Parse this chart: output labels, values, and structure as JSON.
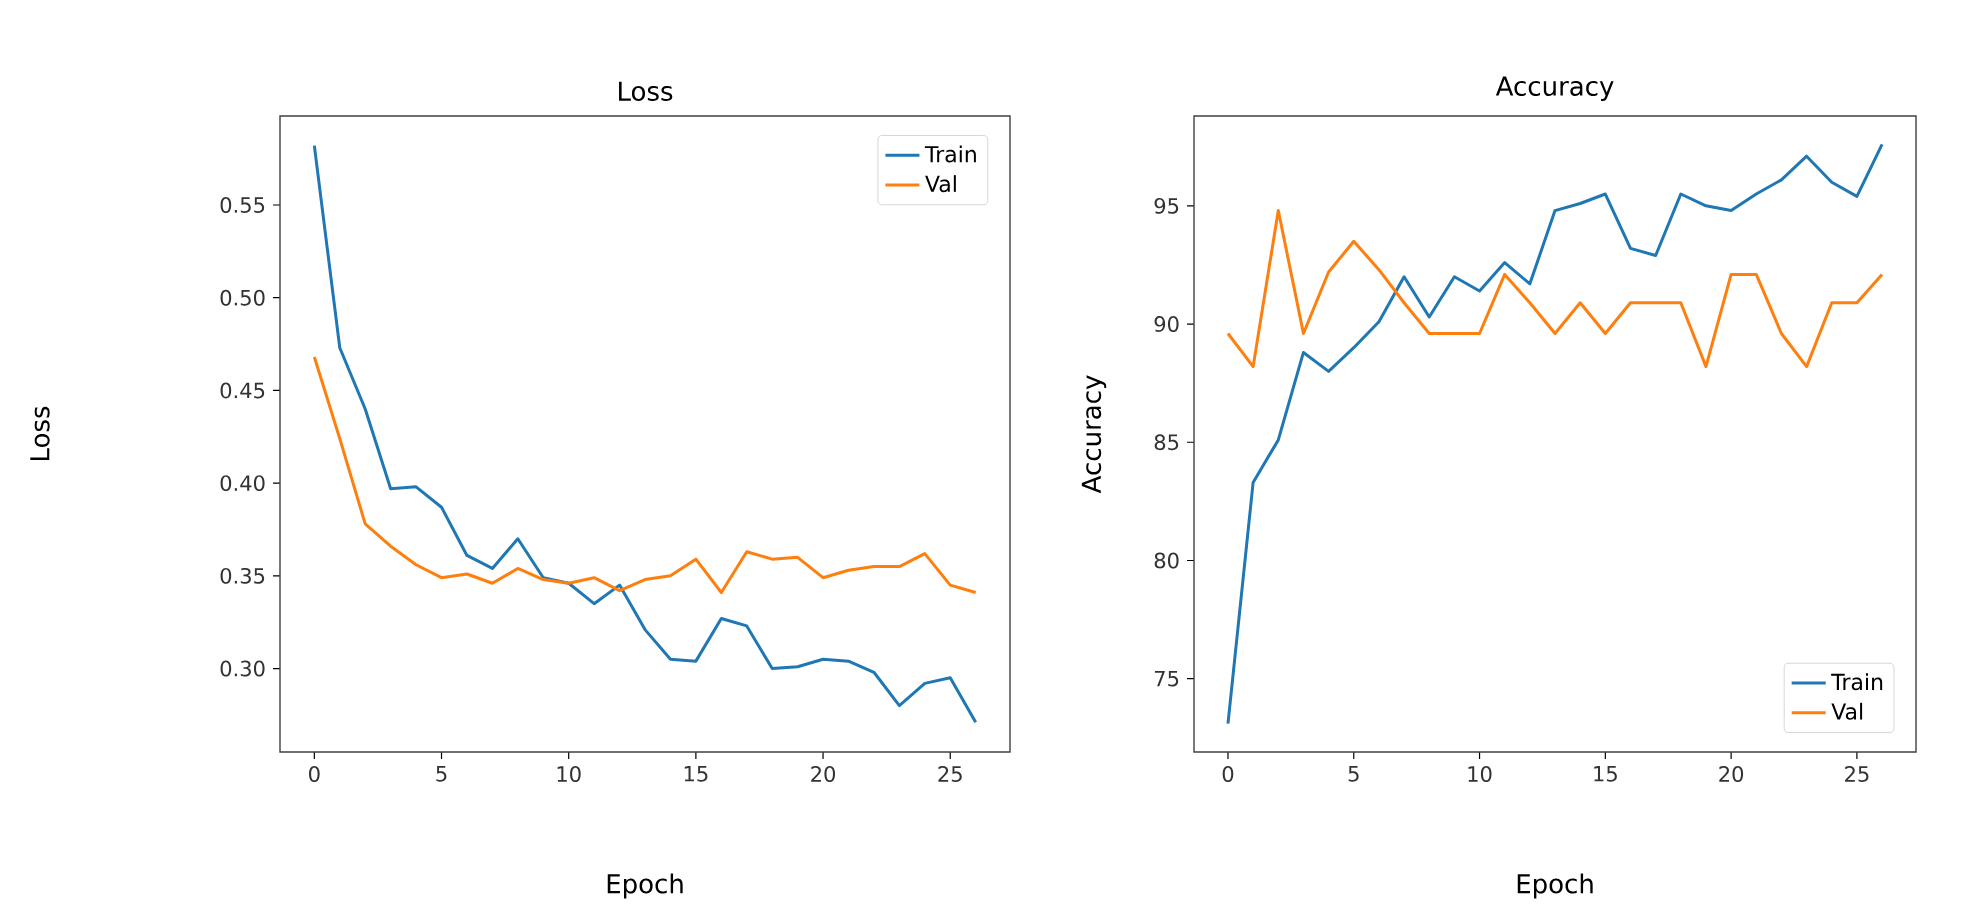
{
  "chart_data": [
    {
      "type": "line",
      "title": "Loss",
      "xlabel": "Epoch",
      "ylabel": "Loss",
      "x": [
        0,
        1,
        2,
        3,
        4,
        5,
        6,
        7,
        8,
        9,
        10,
        11,
        12,
        13,
        14,
        15,
        16,
        17,
        18,
        19,
        20,
        21,
        22,
        23,
        24,
        25,
        26
      ],
      "series": [
        {
          "name": "Train",
          "color": "#1f77b4",
          "values": [
            0.582,
            0.473,
            0.44,
            0.397,
            0.398,
            0.387,
            0.361,
            0.354,
            0.37,
            0.349,
            0.346,
            0.335,
            0.345,
            0.321,
            0.305,
            0.304,
            0.327,
            0.323,
            0.3,
            0.301,
            0.305,
            0.304,
            0.298,
            0.28,
            0.292,
            0.295,
            0.271
          ]
        },
        {
          "name": "Val",
          "color": "#ff7f0e",
          "values": [
            0.468,
            0.424,
            0.378,
            0.366,
            0.356,
            0.349,
            0.351,
            0.346,
            0.354,
            0.348,
            0.346,
            0.349,
            0.342,
            0.348,
            0.35,
            0.359,
            0.341,
            0.363,
            0.359,
            0.36,
            0.349,
            0.353,
            0.355,
            0.355,
            0.362,
            0.345,
            0.341
          ]
        }
      ],
      "xlim": [
        -1.35,
        27.35
      ],
      "ylim": [
        0.255,
        0.598
      ],
      "xticks": [
        0,
        5,
        10,
        15,
        20,
        25
      ],
      "yticks": [
        {
          "value": 0.3,
          "label": "0.30"
        },
        {
          "value": 0.35,
          "label": "0.35"
        },
        {
          "value": 0.4,
          "label": "0.40"
        },
        {
          "value": 0.45,
          "label": "0.45"
        },
        {
          "value": 0.5,
          "label": "0.50"
        },
        {
          "value": 0.55,
          "label": "0.55"
        }
      ],
      "legend": "top right"
    },
    {
      "type": "line",
      "title": "Accuracy",
      "xlabel": "Epoch",
      "ylabel": "Accuracy",
      "x": [
        0,
        1,
        2,
        3,
        4,
        5,
        6,
        7,
        8,
        9,
        10,
        11,
        12,
        13,
        14,
        15,
        16,
        17,
        18,
        19,
        20,
        21,
        22,
        23,
        24,
        25,
        26
      ],
      "series": [
        {
          "name": "Train",
          "color": "#1f77b4",
          "values": [
            73.1,
            83.3,
            85.1,
            88.8,
            88.0,
            89.0,
            90.1,
            92.0,
            90.3,
            92.0,
            91.4,
            92.6,
            91.7,
            94.8,
            95.1,
            95.5,
            93.2,
            92.9,
            95.5,
            95.0,
            94.8,
            95.5,
            96.1,
            97.1,
            96.0,
            95.4,
            97.6
          ]
        },
        {
          "name": "Val",
          "color": "#ff7f0e",
          "values": [
            89.6,
            88.2,
            94.8,
            89.6,
            92.2,
            93.5,
            92.3,
            90.9,
            89.6,
            89.6,
            89.6,
            92.1,
            90.9,
            89.6,
            90.9,
            89.6,
            90.9,
            90.9,
            90.9,
            88.2,
            92.1,
            92.1,
            89.6,
            88.2,
            90.9,
            90.9,
            92.1
          ]
        }
      ],
      "xlim": [
        -1.35,
        27.35
      ],
      "ylim": [
        71.9,
        98.8
      ],
      "xticks": [
        0,
        5,
        10,
        15,
        20,
        25
      ],
      "yticks": [
        75,
        80,
        85,
        90,
        95
      ],
      "legend": "bottom right"
    }
  ]
}
